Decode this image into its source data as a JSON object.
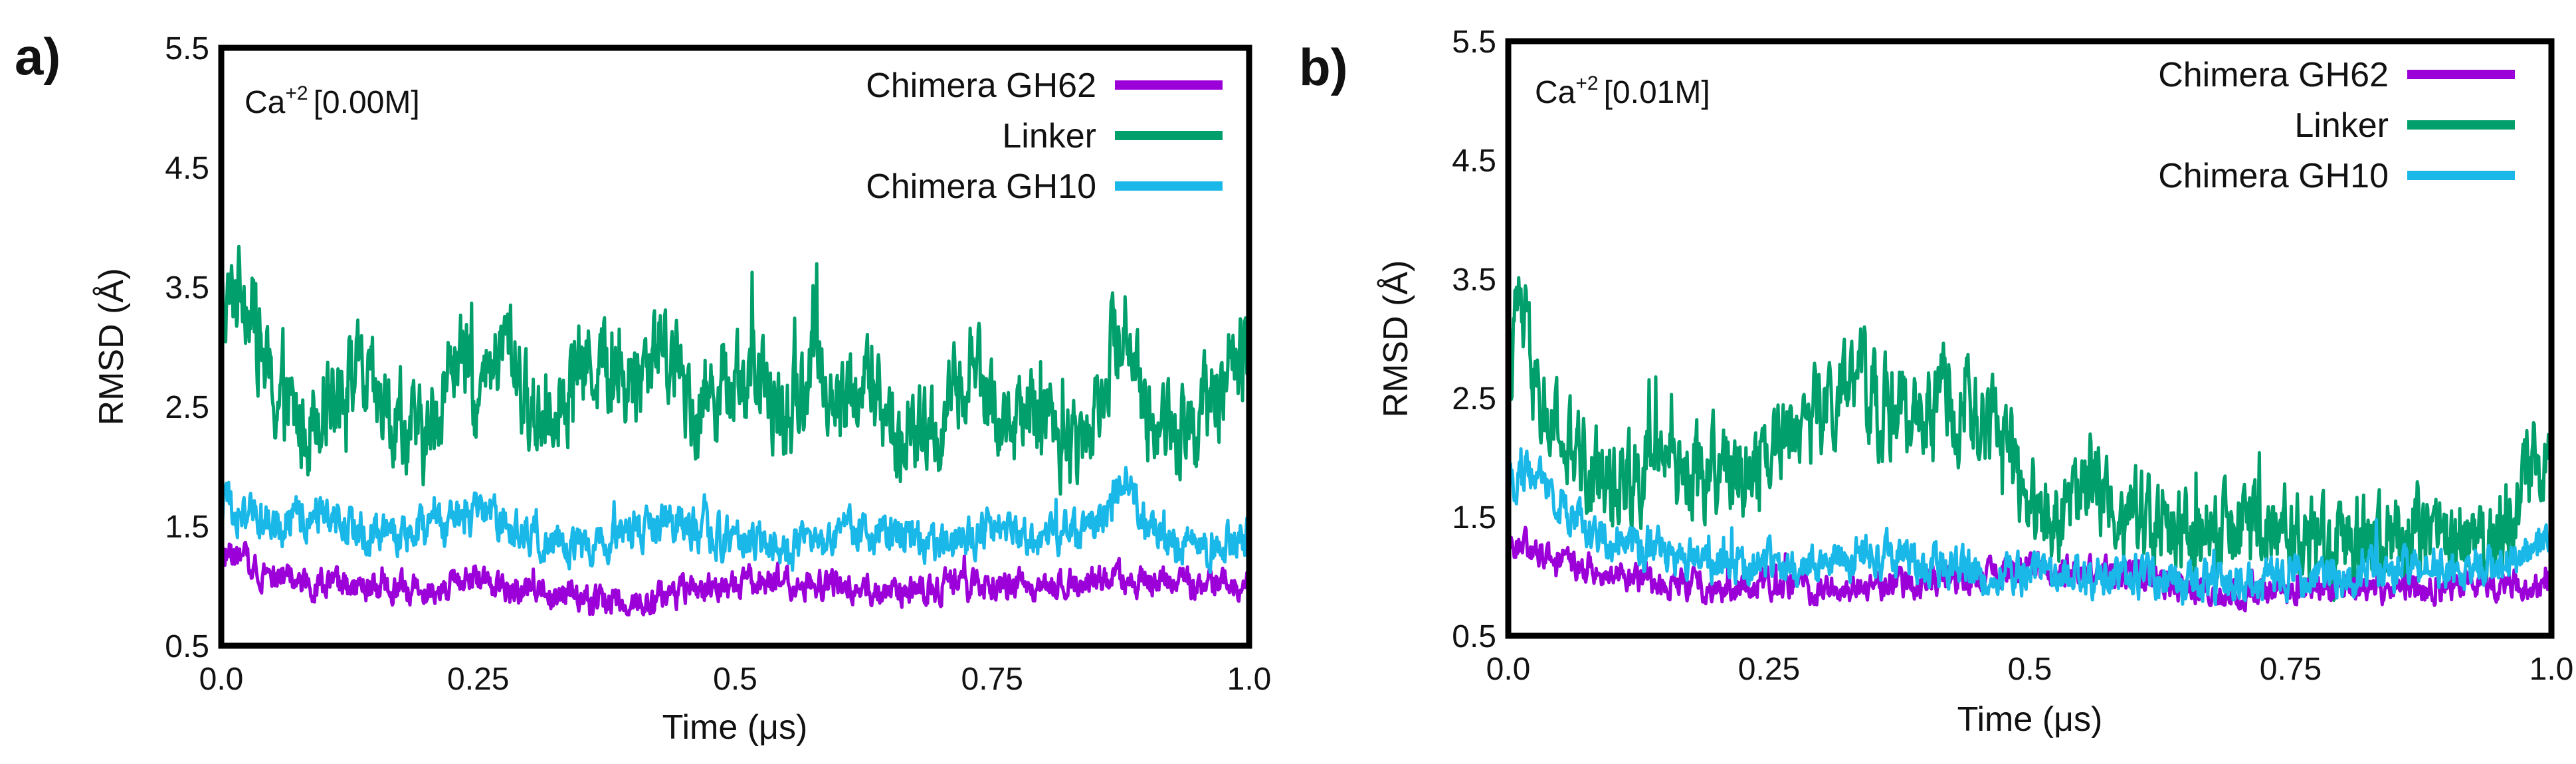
{
  "figure": {
    "panels": [
      "a)",
      "b)"
    ]
  },
  "chart_data": [
    {
      "type": "line",
      "panel_label": "a)",
      "annotation": {
        "ion": "Ca",
        "charge": "+2",
        "concentration": "[0.00M]"
      },
      "xlabel": "Time (μs)",
      "ylabel": "RMSD (Å)",
      "xlim": [
        0.0,
        1.0
      ],
      "ylim": [
        0.5,
        5.5
      ],
      "xticks": [
        "0.0",
        "0.25",
        "0.5",
        "0.75",
        "1.0"
      ],
      "xtick_values": [
        0.0,
        0.25,
        0.5,
        0.75,
        1.0
      ],
      "yticks": [
        "0.5",
        "1.5",
        "2.5",
        "3.5",
        "4.5",
        "5.5"
      ],
      "ytick_values": [
        0.5,
        1.5,
        2.5,
        3.5,
        4.5,
        5.5
      ],
      "legend_position": "top-right",
      "series": [
        {
          "name": "Chimera GH62",
          "color": "#9b00d9",
          "x": [
            0.0,
            0.05,
            0.1,
            0.15,
            0.2,
            0.25,
            0.3,
            0.35,
            0.4,
            0.45,
            0.5,
            0.55,
            0.6,
            0.65,
            0.7,
            0.75,
            0.8,
            0.85,
            0.9,
            0.95,
            1.0
          ],
          "y": [
            1.3,
            1.1,
            1.0,
            0.95,
            1.0,
            1.05,
            0.95,
            0.9,
            0.85,
            0.95,
            1.0,
            1.05,
            1.0,
            0.95,
            1.0,
            1.0,
            1.0,
            1.05,
            1.05,
            1.0,
            1.0
          ]
        },
        {
          "name": "Linker",
          "color": "#009f6b",
          "x": [
            0.0,
            0.02,
            0.05,
            0.08,
            0.1,
            0.13,
            0.16,
            0.2,
            0.23,
            0.25,
            0.28,
            0.3,
            0.33,
            0.36,
            0.4,
            0.43,
            0.46,
            0.5,
            0.53,
            0.55,
            0.58,
            0.6,
            0.63,
            0.66,
            0.7,
            0.73,
            0.76,
            0.8,
            0.83,
            0.86,
            0.88,
            0.9,
            0.93,
            0.96,
            1.0
          ],
          "y": [
            3.2,
            3.6,
            2.6,
            2.3,
            2.6,
            2.8,
            2.4,
            2.2,
            3.0,
            2.5,
            3.1,
            2.4,
            2.6,
            2.9,
            2.7,
            3.1,
            2.5,
            2.8,
            2.6,
            2.4,
            2.9,
            2.5,
            2.7,
            2.2,
            2.3,
            2.9,
            2.3,
            2.5,
            2.1,
            2.8,
            3.3,
            2.4,
            2.3,
            2.5,
            3.0
          ]
        },
        {
          "name": "Chimera GH10",
          "color": "#1ab8e8",
          "x": [
            0.0,
            0.05,
            0.1,
            0.15,
            0.2,
            0.25,
            0.3,
            0.35,
            0.4,
            0.45,
            0.5,
            0.55,
            0.6,
            0.65,
            0.7,
            0.75,
            0.8,
            0.85,
            0.88,
            0.9,
            0.95,
            1.0
          ],
          "y": [
            1.7,
            1.5,
            1.6,
            1.4,
            1.5,
            1.6,
            1.4,
            1.3,
            1.5,
            1.5,
            1.4,
            1.3,
            1.4,
            1.5,
            1.3,
            1.5,
            1.4,
            1.5,
            1.9,
            1.5,
            1.3,
            1.4
          ]
        }
      ]
    },
    {
      "type": "line",
      "panel_label": "b)",
      "annotation": {
        "ion": "Ca",
        "charge": "+2",
        "concentration": "[0.01M]"
      },
      "xlabel": "Time (μs)",
      "ylabel": "RMSD (Å)",
      "xlim": [
        0.0,
        1.0
      ],
      "ylim": [
        0.5,
        5.5
      ],
      "xticks": [
        "0.0",
        "0.25",
        "0.5",
        "0.75",
        "1.0"
      ],
      "xtick_values": [
        0.0,
        0.25,
        0.5,
        0.75,
        1.0
      ],
      "yticks": [
        "0.5",
        "1.5",
        "2.5",
        "3.5",
        "4.5",
        "5.5"
      ],
      "ytick_values": [
        0.5,
        1.5,
        2.5,
        3.5,
        4.5,
        5.5
      ],
      "legend_position": "top-right",
      "series": [
        {
          "name": "Chimera GH62",
          "color": "#9b00d9",
          "x": [
            0.0,
            0.05,
            0.1,
            0.15,
            0.2,
            0.25,
            0.3,
            0.35,
            0.4,
            0.45,
            0.5,
            0.55,
            0.6,
            0.65,
            0.7,
            0.75,
            0.8,
            0.85,
            0.9,
            0.95,
            1.0
          ],
          "y": [
            1.3,
            1.15,
            1.0,
            0.95,
            0.9,
            0.95,
            0.9,
            0.9,
            0.95,
            1.0,
            1.1,
            1.05,
            1.0,
            0.9,
            0.85,
            0.85,
            0.9,
            0.9,
            0.9,
            0.95,
            0.9
          ]
        },
        {
          "name": "Linker",
          "color": "#009f6b",
          "x": [
            0.0,
            0.01,
            0.03,
            0.06,
            0.1,
            0.14,
            0.18,
            0.22,
            0.26,
            0.3,
            0.34,
            0.38,
            0.42,
            0.45,
            0.48,
            0.5,
            0.53,
            0.56,
            0.6,
            0.64,
            0.68,
            0.72,
            0.76,
            0.8,
            0.84,
            0.88,
            0.92,
            0.95,
            0.98,
            1.0
          ],
          "y": [
            2.6,
            3.3,
            2.4,
            2.0,
            1.8,
            2.0,
            1.9,
            1.9,
            2.2,
            2.4,
            2.6,
            2.3,
            2.5,
            2.3,
            2.1,
            1.6,
            1.5,
            1.8,
            1.5,
            1.4,
            1.3,
            1.4,
            1.3,
            1.3,
            1.3,
            1.4,
            1.3,
            1.4,
            1.9,
            2.1
          ]
        },
        {
          "name": "Chimera GH10",
          "color": "#1ab8e8",
          "x": [
            0.0,
            0.03,
            0.06,
            0.1,
            0.15,
            0.2,
            0.25,
            0.3,
            0.35,
            0.4,
            0.45,
            0.5,
            0.55,
            0.6,
            0.65,
            0.7,
            0.75,
            0.8,
            0.85,
            0.9,
            0.95,
            1.0
          ],
          "y": [
            1.8,
            1.9,
            1.5,
            1.3,
            1.2,
            1.1,
            1.1,
            1.1,
            1.2,
            1.1,
            1.05,
            1.0,
            1.0,
            1.0,
            0.95,
            0.95,
            1.0,
            1.0,
            1.05,
            1.1,
            1.1,
            1.3
          ]
        }
      ]
    }
  ]
}
